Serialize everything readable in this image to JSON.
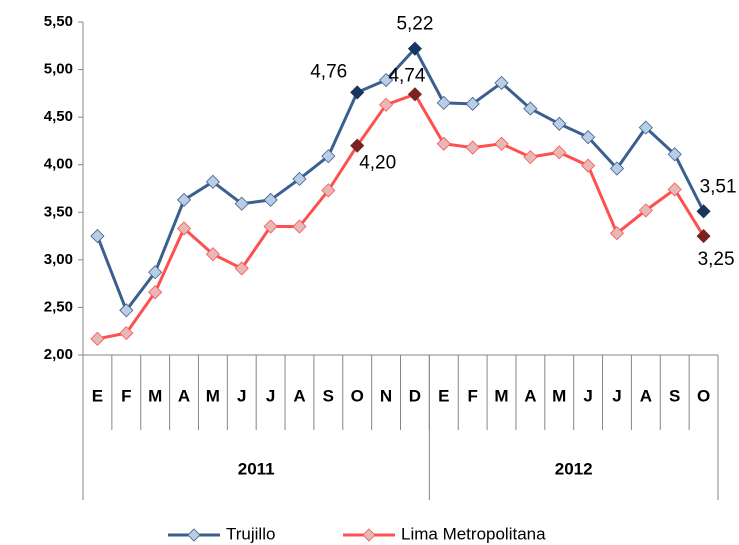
{
  "chart_data": {
    "type": "line",
    "categories": [
      "E",
      "F",
      "M",
      "A",
      "M",
      "J",
      "J",
      "A",
      "S",
      "O",
      "N",
      "D",
      "E",
      "F",
      "M",
      "A",
      "M",
      "J",
      "J",
      "A",
      "S",
      "O"
    ],
    "x_groups": [
      {
        "label": "2011",
        "count": 12
      },
      {
        "label": "2012",
        "count": 10
      }
    ],
    "ylim": [
      2,
      5.5
    ],
    "yticks": [
      {
        "value": 2,
        "label": "2,00"
      },
      {
        "value": 2.5,
        "label": "2,50"
      },
      {
        "value": 3,
        "label": "3,00"
      },
      {
        "value": 3.5,
        "label": "3,50"
      },
      {
        "value": 4,
        "label": "4,00"
      },
      {
        "value": 4.5,
        "label": "4,50"
      },
      {
        "value": 5,
        "label": "5,00"
      },
      {
        "value": 5.5,
        "label": "5,50"
      }
    ],
    "grid": false,
    "legend": "bottom",
    "series": [
      {
        "name": "Trujillo",
        "color": "#3b5f8e",
        "marker_color": "#b9cde5",
        "highlight_color": "#17365d",
        "values": [
          3.25,
          2.47,
          2.87,
          3.63,
          3.82,
          3.59,
          3.63,
          3.85,
          4.09,
          4.76,
          4.89,
          5.22,
          4.65,
          4.64,
          4.86,
          4.59,
          4.43,
          4.29,
          3.96,
          4.39,
          4.11,
          3.51
        ],
        "value_labels": [
          null,
          null,
          null,
          null,
          null,
          null,
          null,
          null,
          null,
          "4,76",
          null,
          "5,22",
          null,
          null,
          null,
          null,
          null,
          null,
          null,
          null,
          null,
          "3,51"
        ]
      },
      {
        "name": "Lima Metropolitana",
        "color": "#ff5050",
        "marker_color": "#e6b9b8",
        "highlight_color": "#7a2222",
        "values": [
          2.17,
          2.23,
          2.66,
          3.33,
          3.06,
          2.91,
          3.35,
          3.35,
          3.73,
          4.2,
          4.63,
          4.74,
          4.22,
          4.18,
          4.22,
          4.08,
          4.13,
          3.99,
          3.28,
          3.52,
          3.74,
          3.25
        ],
        "value_labels": [
          null,
          null,
          null,
          null,
          null,
          null,
          null,
          null,
          null,
          "4,20",
          null,
          "4,74",
          null,
          null,
          null,
          null,
          null,
          null,
          null,
          null,
          null,
          "3,25"
        ]
      }
    ]
  }
}
